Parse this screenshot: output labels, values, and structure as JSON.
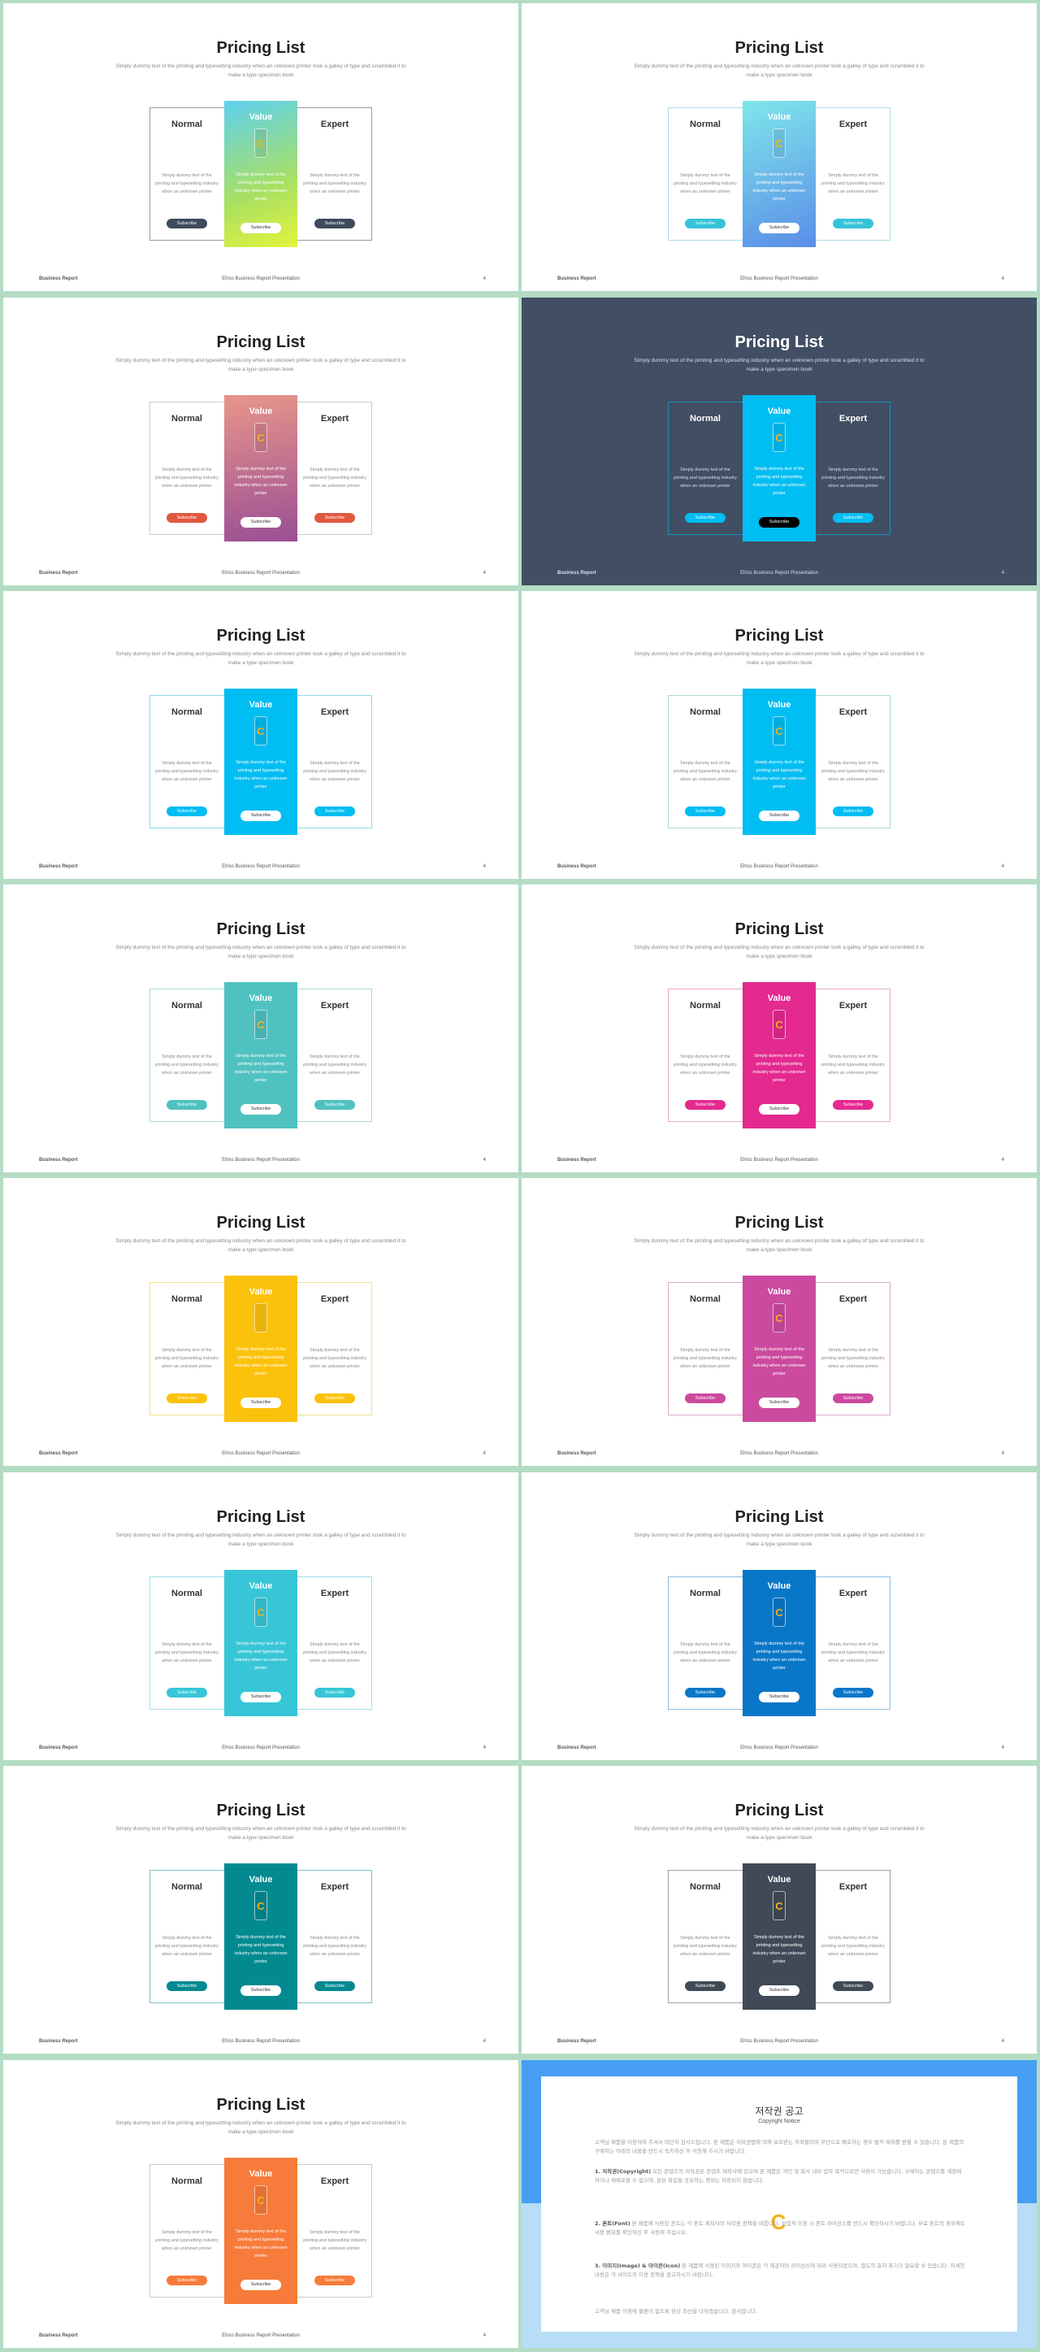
{
  "slide": {
    "title": "Pricing List",
    "subtitle": "Simply dummy text of the printing and typesetting industry when an unknown printer took a galley of type and scrambled it to make a type specimen book",
    "normal": "Normal",
    "value": "Value",
    "expert": "Expert",
    "col_text": "Simply dummy text of the printing and typesetting industry when an unknown printer",
    "subscribe": "Subscribe",
    "icon_letter": "C",
    "footer_left": "Business Report",
    "footer_center": "Ehiss Business Report Presentation",
    "footer_right": "4"
  },
  "variants": [
    {
      "accent": "#3e4a5c",
      "mid": "linear-gradient(160deg,#5ed1f0,#a8e063 60%,#e2f43b)",
      "border": "#999999"
    },
    {
      "accent": "#35c3d8",
      "mid": "linear-gradient(160deg,#7ee6ea,#5a8ee8)",
      "border": "#a8dde6"
    },
    {
      "accent": "#e0593f",
      "mid": "linear-gradient(170deg,#e8958a,#9a4f94)",
      "border": "#cccccc"
    },
    {
      "accent": "#00bdf2",
      "mid": "#00bdf2",
      "border": "#1993c0",
      "dark": true,
      "midBtn": "#000000"
    },
    {
      "accent": "#00bdf2",
      "mid": "#00bdf2",
      "border": "#8dd9f0"
    },
    {
      "accent": "#00bdf2",
      "mid": "#00bdf2",
      "border": "#a8d9d4"
    },
    {
      "accent": "#4fc2c0",
      "mid": "#4fc2c0",
      "border": "#a6ddda"
    },
    {
      "accent": "#e4298f",
      "mid": "#e4298f",
      "border": "#e8a8cc"
    },
    {
      "accent": "#fbc20b",
      "mid": "#fbc20b",
      "border": "#f0e08a"
    },
    {
      "accent": "#cb4a9f",
      "mid": "#cb4a9f",
      "border": "#ddaacd"
    },
    {
      "accent": "#37c6d7",
      "mid": "#37c6d7",
      "border": "#a2dfe7"
    },
    {
      "accent": "#0977c8",
      "mid": "#0977c8",
      "border": "#8dbde3"
    },
    {
      "accent": "#038a91",
      "mid": "#038a91",
      "border": "#7dc2c5"
    },
    {
      "accent": "#404a56",
      "mid": "#404a56",
      "border": "#9aa0a8"
    },
    {
      "accent": "#f77b3a",
      "mid": "#f77b3a",
      "border": "#cccccc"
    }
  ],
  "copyright": {
    "title": "저작권 공고",
    "subtitle": "Copyright Notice",
    "p1": "고객님 제품을 이용하여 주셔서 대단히 감사드립니다. 본 제품은 저작권법에 의해 보호받는 저작물이며 무단으로 배포하는 경우 법적 제재를 받을 수 있습니다. 본 제품의 구매자는 아래의 내용을 반드시 숙지하신 후 이용해 주시기 바랍니다.",
    "p2_label": "1. 저작권(Copyright)",
    "p2": " 모든 콘텐츠의 저작권은 콘텐츠 제작사에 있으며 본 제품은 개인 및 회사 내부 업무 목적으로만 사용이 가능합니다. 구매자는 콘텐츠를 재판매하거나 재배포할 수 없으며, 원본 파일을 공유하는 행위는 허용되지 않습니다.",
    "p3_label": "2. 폰트(Font)",
    "p3": " 본 제품에 사용된 폰트는 각 폰트 제작사의 저작권 정책을 따릅니다. 상업적 이용 시 폰트 라이선스를 반드시 확인하시기 바랍니다. 무료 폰트의 경우에도 사용 범위를 확인하신 후 사용해 주십시오.",
    "p4_label": "3. 이미지(Image) & 아이콘(Icon)",
    "p4": " 본 제품에 사용된 이미지와 아이콘은 각 제공처의 라이선스에 따라 사용되었으며, 별도의 출처 표기가 필요할 수 있습니다. 자세한 내용은 각 사이트의 이용 정책을 참고하시기 바랍니다.",
    "p5": "고객님 제품 이용에 불편이 없도록 항상 최선을 다하겠습니다. 감사합니다.",
    "logo_letter": "C"
  }
}
